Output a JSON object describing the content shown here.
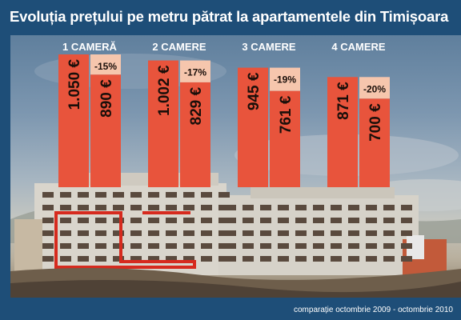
{
  "header": {
    "title": "Evoluția prețului pe metru pătrat la apartamentele din Timișoara"
  },
  "footer": {
    "note": "comparație octombrie 2009 - octombrie 2010"
  },
  "colors": {
    "frame": "#1e4e78",
    "bar_2009": "#e8543c",
    "bar_2010": "#e8543c",
    "change_box": "#f6c6ad",
    "title_text": "#ffffff"
  },
  "chart_data": {
    "type": "bar",
    "title": "Evoluția prețului pe metru pătrat la apartamentele din Timișoara",
    "categories": [
      "1 CAMERĂ",
      "2 CAMERE",
      "3 CAMERE",
      "4 CAMERE"
    ],
    "series": [
      {
        "values": [
          1050,
          1002,
          945,
          871
        ]
      },
      {
        "values": [
          890,
          829,
          761,
          700
        ]
      }
    ],
    "value_labels": [
      [
        "1.050 €",
        "890 €"
      ],
      [
        "1.002 €",
        "829 €"
      ],
      [
        "945 €",
        "761 €"
      ],
      [
        "871 €",
        "700 €"
      ]
    ],
    "changes": [
      "-15%",
      "-17%",
      "-19%",
      "-20%"
    ],
    "ylim": [
      0,
      1050
    ],
    "grid": false,
    "legend": "none",
    "note": "comparație octombrie 2009 - octombrie 2010"
  }
}
